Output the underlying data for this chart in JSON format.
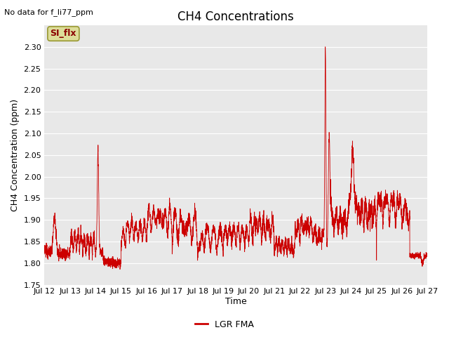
{
  "title": "CH4 Concentrations",
  "xlabel": "Time",
  "ylabel": "CH4 Concentration (ppm)",
  "top_left_text": "No data for f_li77_ppm",
  "ylim": [
    1.75,
    2.35
  ],
  "yticks": [
    1.75,
    1.8,
    1.85,
    1.9,
    1.95,
    2.0,
    2.05,
    2.1,
    2.15,
    2.2,
    2.25,
    2.3
  ],
  "x_tick_labels": [
    "Jul 12",
    "Jul 13",
    "Jul 14",
    "Jul 15",
    "Jul 16",
    "Jul 17",
    "Jul 18",
    "Jul 19",
    "Jul 20",
    "Jul 21",
    "Jul 22",
    "Jul 23",
    "Jul 24",
    "Jul 25",
    "Jul 26",
    "Jul 27"
  ],
  "legend_label": "LGR FMA",
  "line_color": "#cc0000",
  "plot_bg_color": "#e8e8e8",
  "si_flx_box_color": "#dddd99",
  "si_flx_text": "SI_flx",
  "title_fontsize": 12,
  "label_fontsize": 9,
  "tick_fontsize": 8,
  "grid_color": "#ffffff"
}
